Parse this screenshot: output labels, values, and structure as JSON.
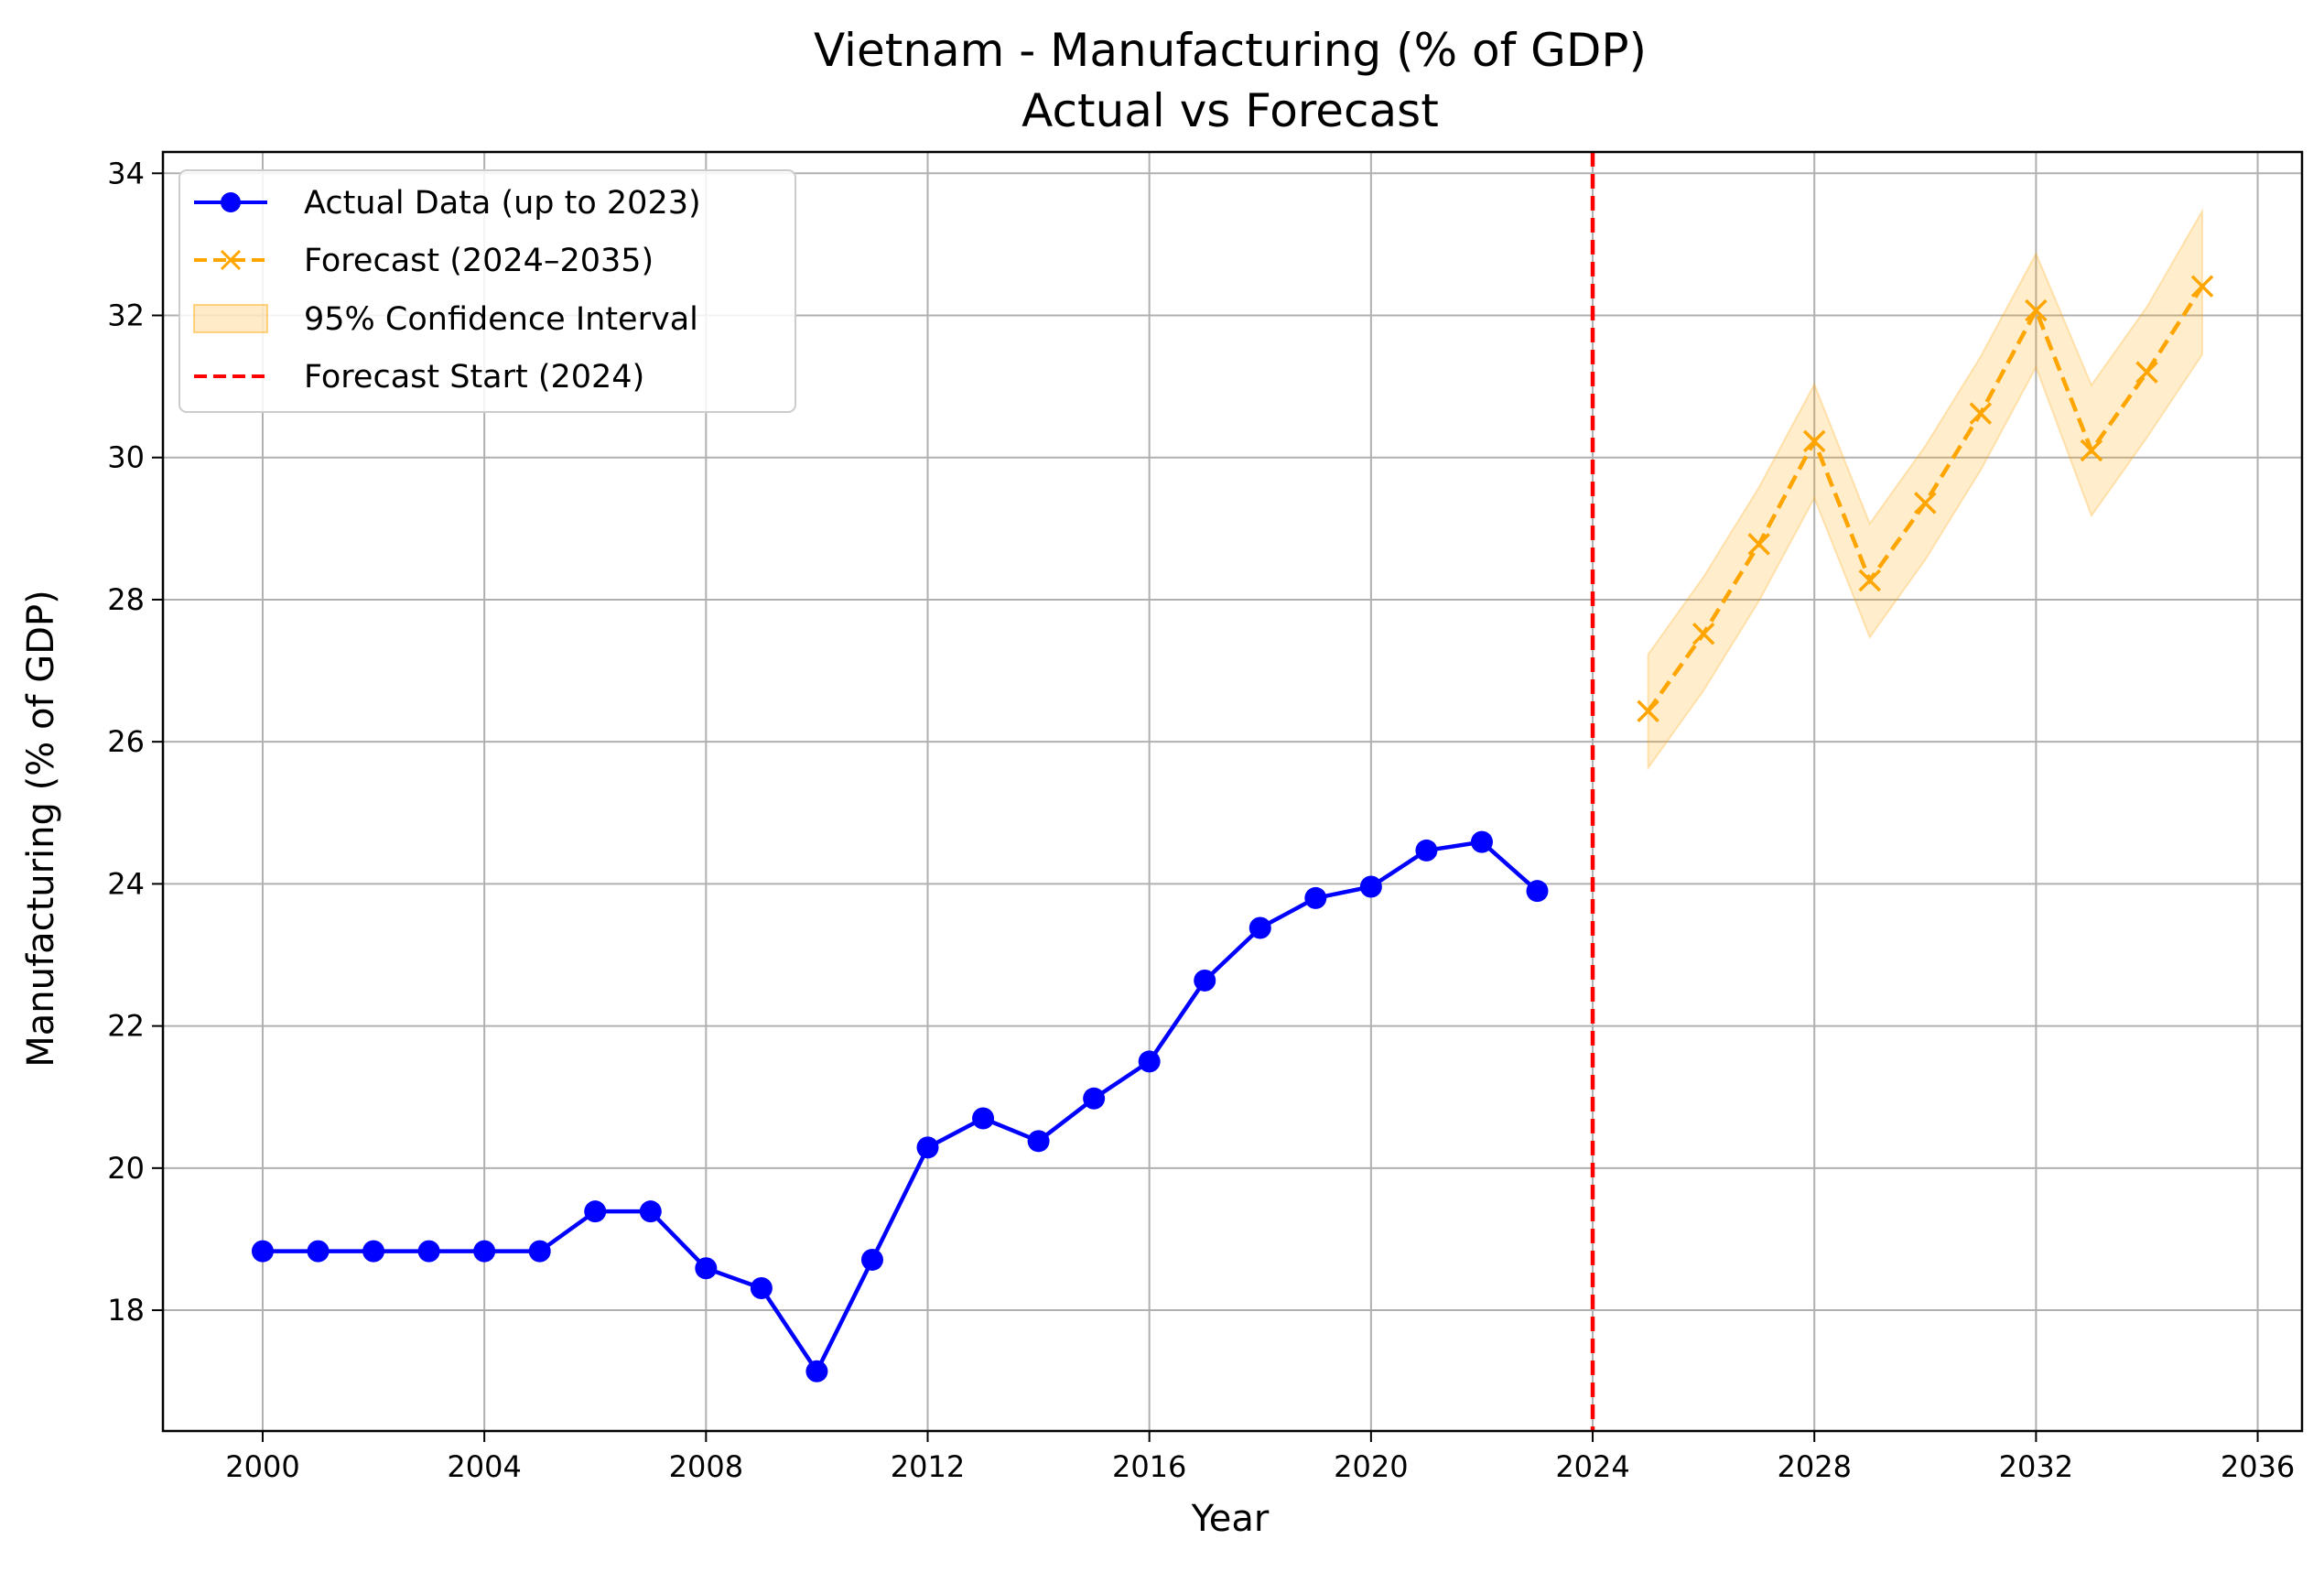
{
  "chart_data": {
    "type": "line",
    "title": "Vietnam - Manufacturing (% of GDP)",
    "subtitle": "Actual vs Forecast",
    "xlabel": "Year",
    "ylabel": "Manufacturing (% of GDP)",
    "xlim": [
      1998.2,
      2036.8
    ],
    "ylim": [
      16.3,
      34.3
    ],
    "x_ticks": [
      2000,
      2004,
      2008,
      2012,
      2016,
      2020,
      2024,
      2028,
      2032,
      2036
    ],
    "y_ticks": [
      18,
      20,
      22,
      24,
      26,
      28,
      30,
      32,
      34
    ],
    "grid": true,
    "legend_position": "top-left",
    "forecast_start": 2024,
    "series": [
      {
        "name": "Actual Data (up to 2023)",
        "style": "solid-line-circle-markers",
        "color": "#0000ff",
        "x": [
          2000,
          2001,
          2002,
          2003,
          2004,
          2005,
          2006,
          2007,
          2008,
          2009,
          2010,
          2011,
          2012,
          2013,
          2014,
          2015,
          2016,
          2017,
          2018,
          2019,
          2020,
          2021,
          2022,
          2023
        ],
        "y": [
          18.83,
          18.83,
          18.83,
          18.83,
          18.83,
          18.83,
          19.39,
          19.39,
          18.59,
          18.31,
          17.14,
          18.71,
          20.29,
          20.7,
          20.38,
          20.98,
          21.5,
          22.64,
          23.38,
          23.8,
          23.96,
          24.47,
          24.59,
          23.9
        ]
      },
      {
        "name": "Forecast (2024–2035)",
        "style": "dashed-line-x-markers",
        "color": "#ffa500",
        "x": [
          2025,
          2026,
          2027,
          2028,
          2029,
          2030,
          2031,
          2032,
          2033,
          2034,
          2035
        ],
        "y": [
          26.43,
          27.52,
          28.78,
          30.23,
          28.27,
          29.36,
          30.62,
          32.07,
          30.1,
          31.2,
          32.41
        ]
      },
      {
        "name": "95% Confidence Interval",
        "style": "band",
        "color": "#ffa500",
        "x": [
          2025,
          2026,
          2027,
          2028,
          2029,
          2030,
          2031,
          2032,
          2033,
          2034,
          2035
        ],
        "lower": [
          25.63,
          26.72,
          27.98,
          29.43,
          27.47,
          28.56,
          29.82,
          31.27,
          29.18,
          30.28,
          31.45
        ],
        "upper": [
          27.23,
          28.32,
          29.58,
          31.03,
          29.07,
          30.16,
          31.42,
          32.87,
          31.02,
          32.12,
          33.47
        ]
      },
      {
        "name": "Forecast Start (2024)",
        "style": "dashed-vertical-line",
        "color": "#ff0000",
        "x": [
          2024
        ]
      }
    ]
  }
}
